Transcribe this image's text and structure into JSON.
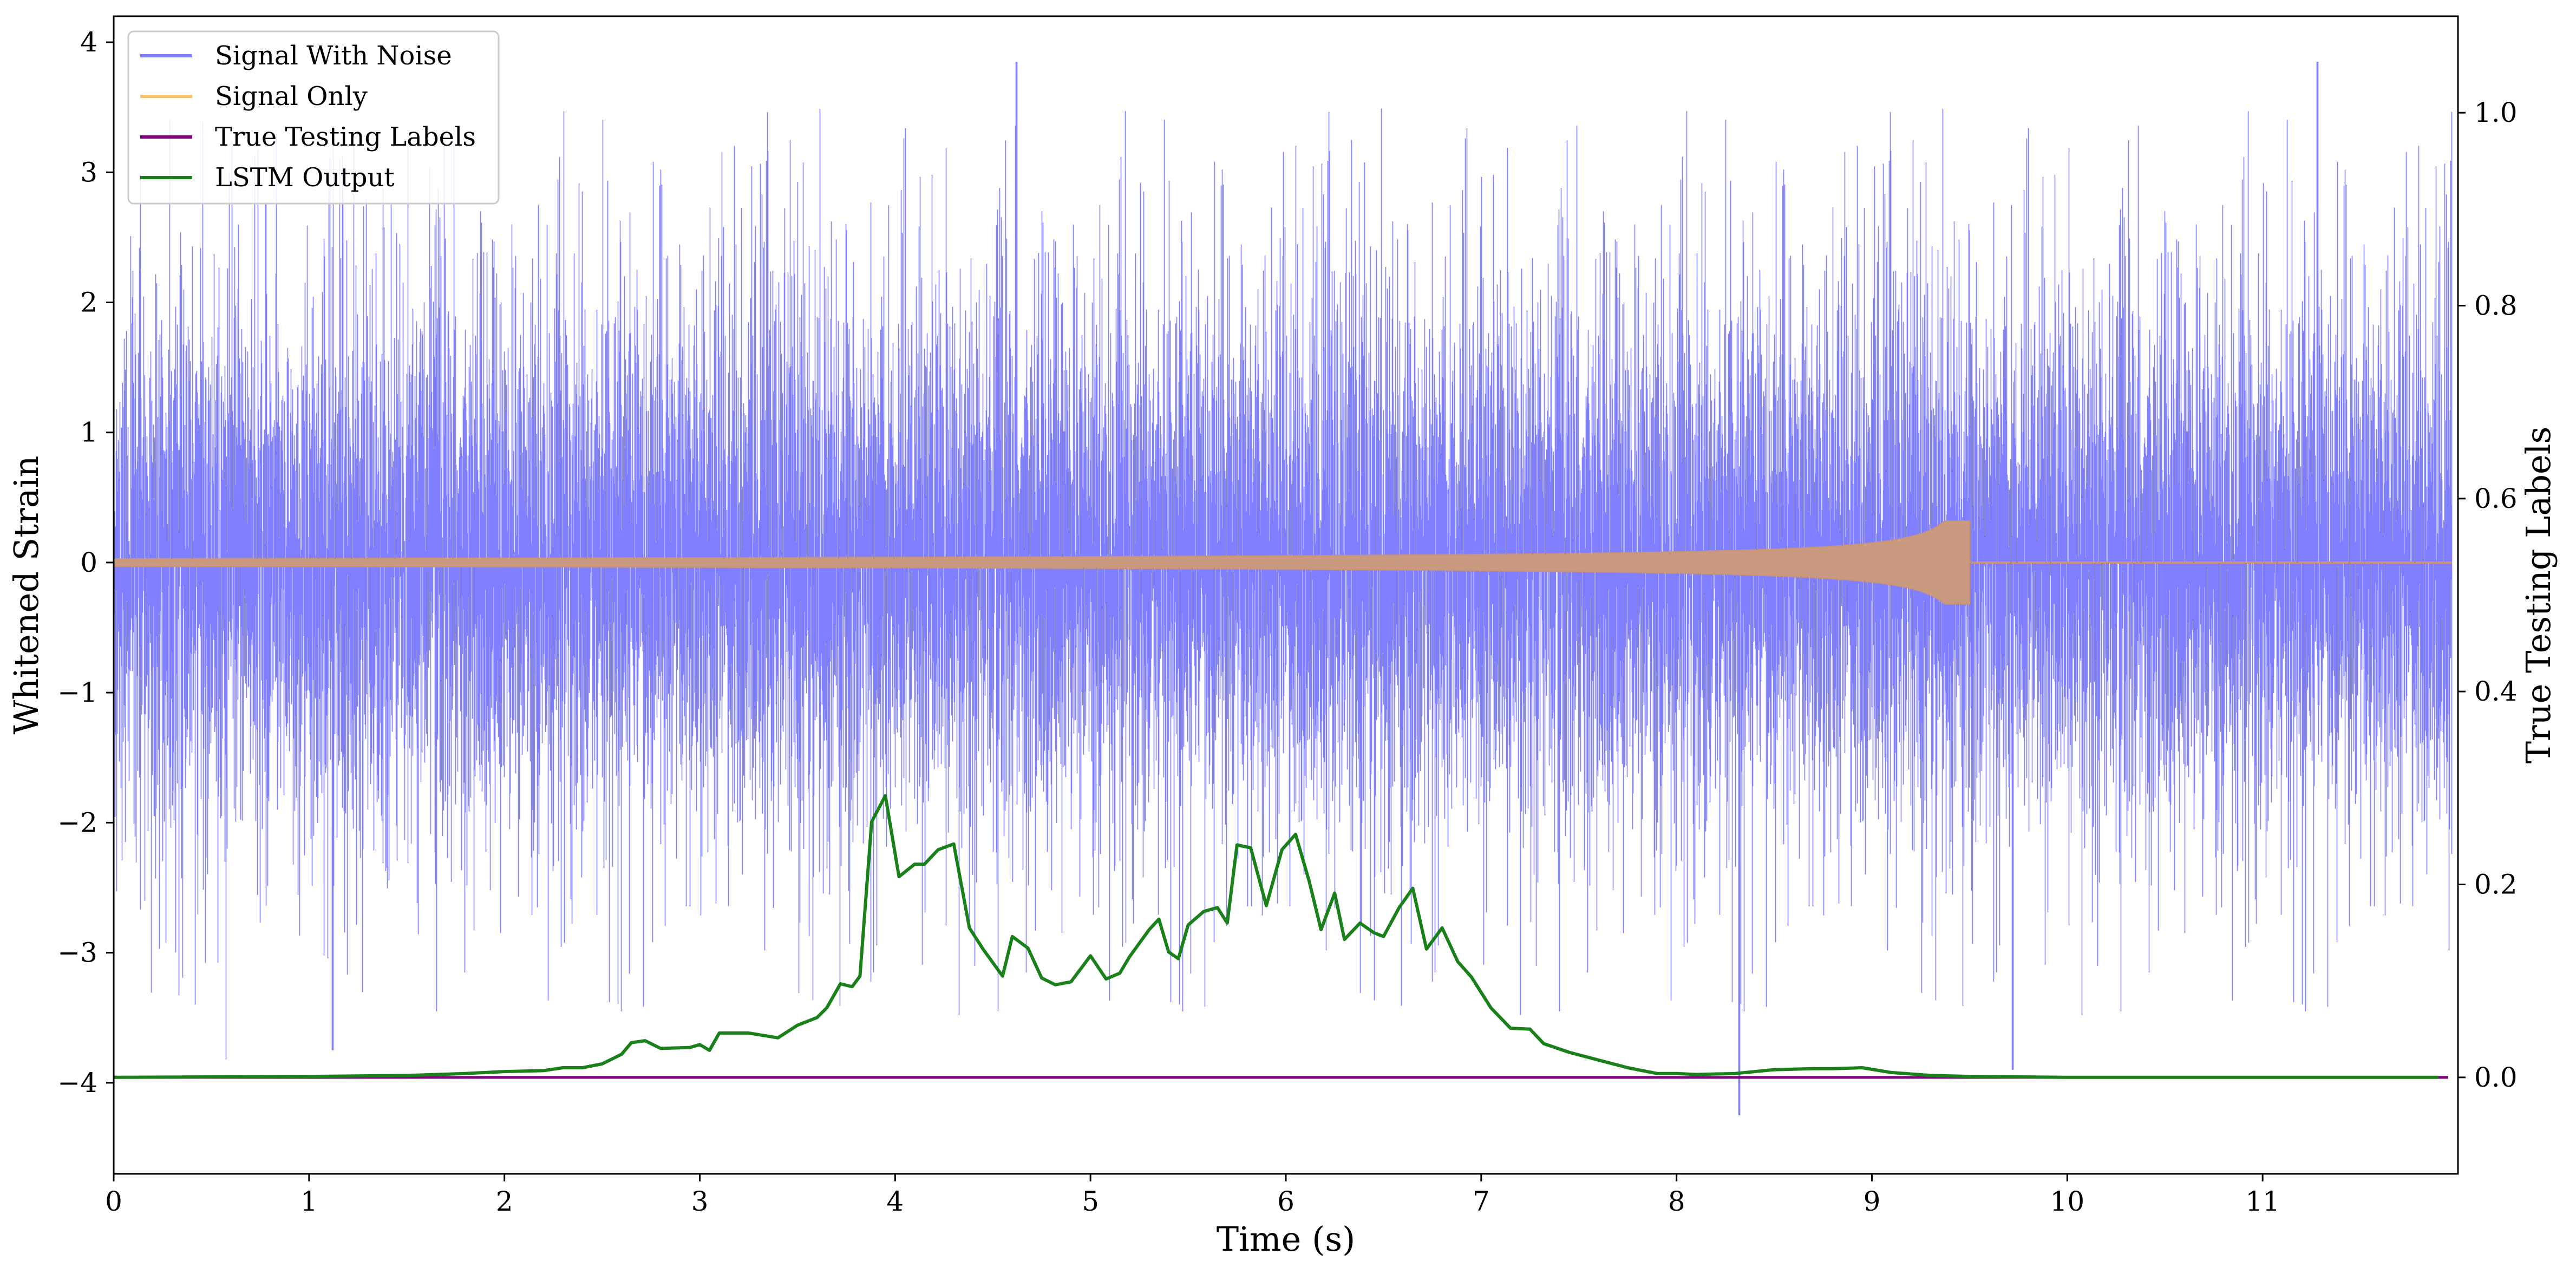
{
  "chart_data": {
    "type": "line",
    "xlabel": "Time (s)",
    "ylabel_left": "Whitened Strain",
    "ylabel_right": "True Testing Labels",
    "xlim": [
      0,
      12
    ],
    "ylim_left": [
      -4.7,
      4.2
    ],
    "ylim_right": [
      -0.1,
      1.1
    ],
    "x_ticks": [
      0,
      1,
      2,
      3,
      4,
      5,
      6,
      7,
      8,
      9,
      10,
      11
    ],
    "y_ticks_left": [
      -4,
      -3,
      -2,
      -1,
      0,
      1,
      2,
      3,
      4
    ],
    "y_ticks_right": [
      0.0,
      0.2,
      0.4,
      0.6,
      0.8,
      1.0
    ],
    "legend_position": "upper left",
    "grid": false,
    "series": [
      {
        "name": "Signal With Noise",
        "axis": "left",
        "color": "#7f7fff",
        "description_values": {
          "typical_range": [
            -2.9,
            2.9
          ],
          "extreme_spikes": [
            {
              "x": 1.12,
              "y": -3.75
            },
            {
              "x": 4.62,
              "y": 3.85
            },
            {
              "x": 8.32,
              "y": -4.25
            },
            {
              "x": 9.72,
              "y": -3.9
            },
            {
              "x": 11.28,
              "y": 3.85
            }
          ]
        }
      },
      {
        "name": "Signal Only",
        "axis": "left",
        "color": "#f5c26b",
        "description_values": {
          "chirp_start_amplitude": 0.03,
          "chirp_peak_x": 9.5,
          "chirp_peak_amplitude": 0.32,
          "zero_after_x": 9.5
        }
      },
      {
        "name": "True Testing Labels",
        "axis": "right",
        "color": "#800080",
        "x": [
          0,
          11.95
        ],
        "y": [
          0.0,
          0.0
        ]
      },
      {
        "name": "LSTM Output",
        "axis": "right",
        "color": "#1a801a",
        "x": [
          0.0,
          1.0,
          1.5,
          1.8,
          2.0,
          2.2,
          2.3,
          2.4,
          2.5,
          2.6,
          2.65,
          2.72,
          2.8,
          2.95,
          3.0,
          3.05,
          3.1,
          3.25,
          3.4,
          3.5,
          3.6,
          3.65,
          3.72,
          3.78,
          3.82,
          3.88,
          3.95,
          4.02,
          4.1,
          4.15,
          4.22,
          4.3,
          4.38,
          4.45,
          4.55,
          4.6,
          4.68,
          4.75,
          4.82,
          4.9,
          5.0,
          5.08,
          5.15,
          5.2,
          5.3,
          5.35,
          5.4,
          5.45,
          5.5,
          5.58,
          5.65,
          5.7,
          5.75,
          5.82,
          5.9,
          5.98,
          6.05,
          6.12,
          6.18,
          6.25,
          6.3,
          6.38,
          6.45,
          6.5,
          6.58,
          6.65,
          6.72,
          6.8,
          6.88,
          6.95,
          7.05,
          7.15,
          7.25,
          7.32,
          7.45,
          7.6,
          7.75,
          7.9,
          8.0,
          8.1,
          8.3,
          8.5,
          8.7,
          8.8,
          8.95,
          9.1,
          9.3,
          9.5,
          10.0,
          11.0,
          11.9
        ],
        "y": [
          0.0,
          0.001,
          0.002,
          0.004,
          0.006,
          0.007,
          0.01,
          0.01,
          0.014,
          0.024,
          0.036,
          0.038,
          0.03,
          0.031,
          0.034,
          0.028,
          0.046,
          0.046,
          0.041,
          0.054,
          0.062,
          0.072,
          0.097,
          0.094,
          0.105,
          0.265,
          0.292,
          0.208,
          0.221,
          0.221,
          0.236,
          0.242,
          0.155,
          0.133,
          0.105,
          0.146,
          0.134,
          0.103,
          0.096,
          0.099,
          0.126,
          0.102,
          0.108,
          0.125,
          0.153,
          0.164,
          0.13,
          0.123,
          0.158,
          0.172,
          0.176,
          0.16,
          0.241,
          0.238,
          0.178,
          0.236,
          0.252,
          0.203,
          0.153,
          0.191,
          0.143,
          0.16,
          0.15,
          0.146,
          0.176,
          0.196,
          0.133,
          0.155,
          0.12,
          0.104,
          0.072,
          0.051,
          0.05,
          0.035,
          0.026,
          0.018,
          0.01,
          0.004,
          0.004,
          0.003,
          0.004,
          0.008,
          0.009,
          0.009,
          0.01,
          0.005,
          0.002,
          0.001,
          0.0,
          0.0,
          0.0
        ]
      }
    ]
  }
}
